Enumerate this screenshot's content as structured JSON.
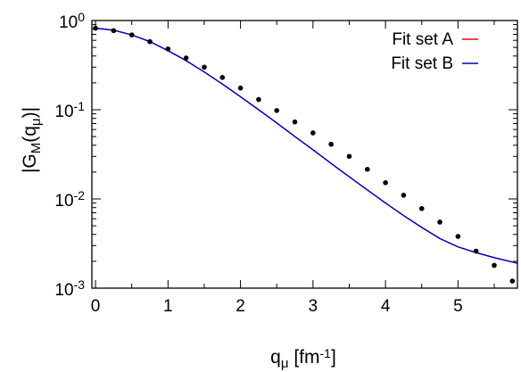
{
  "chart_data": {
    "type": "line",
    "title": "",
    "xlabel": {
      "main": "q",
      "sub": "μ",
      "unit_open": " [fm",
      "unit_sup": "-1",
      "unit_close": "]"
    },
    "ylabel": {
      "pre": "|G",
      "sub1": "M",
      "mid": "(q",
      "sub2": "μ",
      "post": ")|"
    },
    "x_range": [
      -0.05,
      5.82
    ],
    "y_range": [
      0.001,
      1.0
    ],
    "y_scale": "log",
    "x_ticks": [
      {
        "value": 0,
        "label": "0"
      },
      {
        "value": 1,
        "label": "1"
      },
      {
        "value": 2,
        "label": "2"
      },
      {
        "value": 3,
        "label": "3"
      },
      {
        "value": 4,
        "label": "4"
      },
      {
        "value": 5,
        "label": "5"
      }
    ],
    "y_ticks": [
      {
        "value": 1,
        "base": "10",
        "exp": "0"
      },
      {
        "value": 0.1,
        "base": "10",
        "exp": "-1"
      },
      {
        "value": 0.01,
        "base": "10",
        "exp": "-2"
      },
      {
        "value": 0.001,
        "base": "10",
        "exp": "-3"
      }
    ],
    "legend": {
      "position": "top-right"
    },
    "series": [
      {
        "name": "Fit set A",
        "type": "line",
        "color": "#ff0000",
        "x": [
          0,
          0.25,
          0.5,
          0.75,
          1.0,
          1.25,
          1.5,
          1.75,
          2.0,
          2.25,
          2.5,
          2.75,
          3.0,
          3.25,
          3.5,
          3.75,
          4.0,
          4.25,
          4.5,
          4.75,
          5.0,
          5.25,
          5.5,
          5.82
        ],
        "y": [
          0.82,
          0.78,
          0.69,
          0.58,
          0.46,
          0.355,
          0.265,
          0.194,
          0.14,
          0.1,
          0.071,
          0.05,
          0.0355,
          0.025,
          0.0177,
          0.0126,
          0.009,
          0.0065,
          0.0048,
          0.0036,
          0.0029,
          0.0025,
          0.0022,
          0.0019
        ]
      },
      {
        "name": "Fit set B",
        "type": "line",
        "color": "#0000cc",
        "x": [
          0,
          0.25,
          0.5,
          0.75,
          1.0,
          1.25,
          1.5,
          1.75,
          2.0,
          2.25,
          2.5,
          2.75,
          3.0,
          3.25,
          3.5,
          3.75,
          4.0,
          4.25,
          4.5,
          4.75,
          5.0,
          5.25,
          5.5,
          5.82
        ],
        "y": [
          0.82,
          0.78,
          0.69,
          0.58,
          0.46,
          0.355,
          0.265,
          0.194,
          0.14,
          0.1,
          0.071,
          0.05,
          0.0355,
          0.025,
          0.0177,
          0.0126,
          0.009,
          0.0065,
          0.0048,
          0.0036,
          0.0029,
          0.0025,
          0.0022,
          0.0019
        ]
      },
      {
        "type": "scatter",
        "color": "#000000",
        "x": [
          0,
          0.25,
          0.5,
          0.75,
          1.0,
          1.25,
          1.5,
          1.75,
          2.0,
          2.25,
          2.5,
          2.75,
          3.0,
          3.25,
          3.5,
          3.75,
          4.0,
          4.25,
          4.5,
          4.75,
          5.0,
          5.25,
          5.5,
          5.75
        ],
        "y": [
          0.82,
          0.77,
          0.69,
          0.58,
          0.48,
          0.38,
          0.3,
          0.23,
          0.175,
          0.13,
          0.098,
          0.073,
          0.055,
          0.041,
          0.03,
          0.0215,
          0.0152,
          0.011,
          0.0078,
          0.0055,
          0.0038,
          0.0026,
          0.0018,
          0.0012
        ]
      }
    ]
  }
}
